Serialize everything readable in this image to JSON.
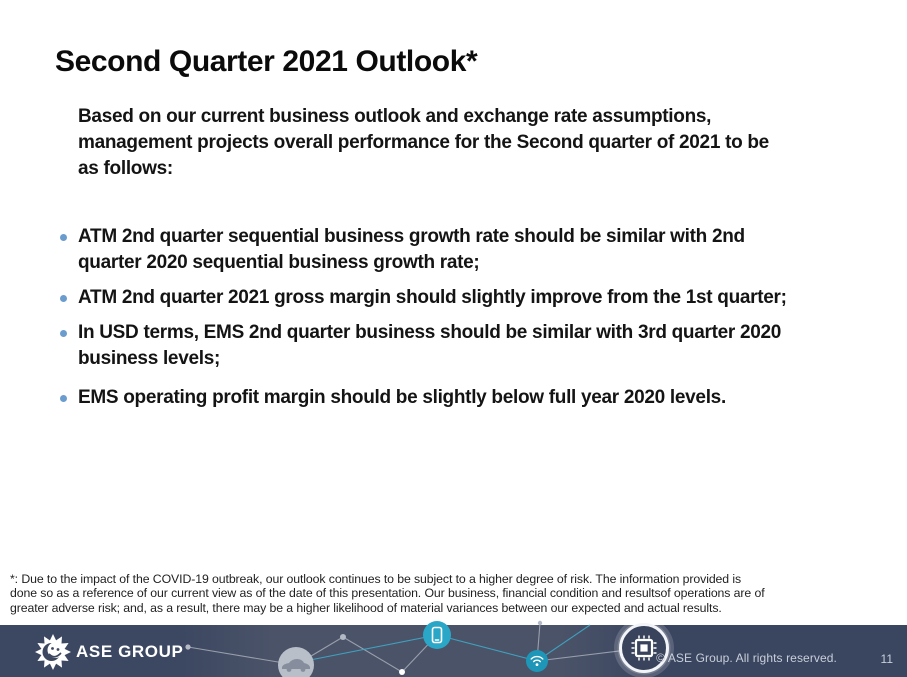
{
  "slide": {
    "title": "Second Quarter 2021 Outlook*",
    "intro_lines": [
      "Based on our current business outlook and exchange rate assumptions,",
      "management projects overall performance for the Second quarter of 2021 to be",
      "as follows:"
    ],
    "bullets": [
      {
        "lines": [
          "ATM 2nd quarter sequential business growth rate should be similar with 2nd",
          "quarter 2020 sequential business growth rate;"
        ]
      },
      {
        "lines": [
          "ATM 2nd quarter 2021 gross margin should slightly improve from the 1st quarter;"
        ]
      },
      {
        "lines": [
          "In USD terms, EMS 2nd quarter business should be similar with 3rd quarter 2020",
          "business levels;"
        ]
      },
      {
        "lines": [
          "EMS operating profit margin should be slightly below full year 2020 levels."
        ]
      }
    ],
    "footnote_lines": [
      "*: Due to the impact of the COVID-19 outbreak, our outlook continues to be subject to a higher degree of risk. The information provided is",
      "done so as a reference of our current view as of the date of this presentation. Our business, financial condition and resultsof operations are of",
      "greater adverse risk; and, as a result, there may be a higher likelihood of material variances between our expected and actual results."
    ]
  },
  "footer": {
    "logo_text": "ASE GROUP",
    "copyright": "© ASE Group. All rights reserved.",
    "page_number": "11",
    "icon_nodes": [
      "car-icon",
      "smartphone-icon",
      "wifi-icon",
      "chip-icon"
    ]
  },
  "colors": {
    "bullet_dot": "#6b9cce",
    "body_text": "#141414",
    "footer_bar_left": "#3c4761",
    "footer_bar_mid": "#4a5368",
    "footer_bar_right": "#3a4560",
    "node_teal": "#2aa7c7",
    "node_wifi_teal": "#1e96b8",
    "node_car_gray": "#b9bfc9",
    "network_line_gray": "#a7adb9",
    "network_line_teal": "#3fa9c9",
    "footer_text": "#c9cfda"
  }
}
